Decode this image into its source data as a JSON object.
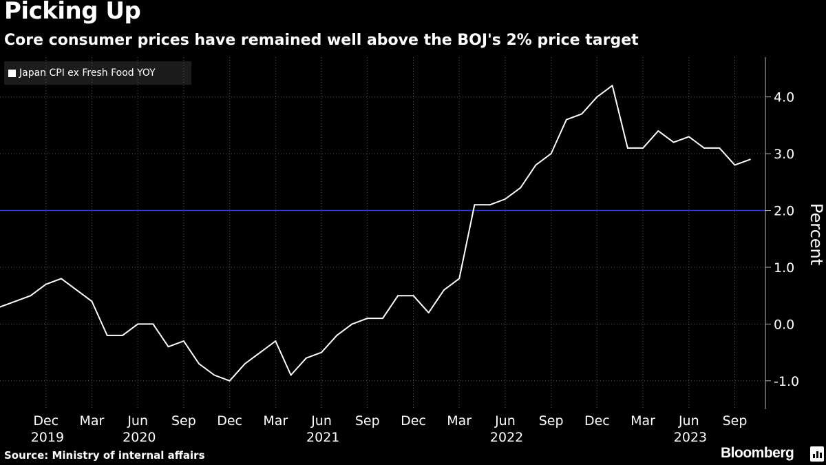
{
  "header": {
    "title": "Picking Up",
    "subtitle": "Core consumer prices have remained well above the BOJ's 2% price target"
  },
  "footer": {
    "source": "Source: Ministry of internal affairs",
    "brand": "Bloomberg",
    "brand_icon": "bloomberg-chart-icon"
  },
  "colors": {
    "background": "#000000",
    "series": "#ffffff",
    "target_line": "#2f3bd6",
    "grid": "#5a5a5a",
    "legend_bg": "#1c1c1c"
  },
  "chart_data": {
    "type": "line",
    "title": "Picking Up",
    "subtitle": "Core consumer prices have remained well above the BOJ's 2% price target",
    "ylabel": "Percent",
    "xlabel": "",
    "ylim": [
      -1.5,
      4.7
    ],
    "yticks": [
      -1.0,
      0.0,
      1.0,
      2.0,
      3.0,
      4.0
    ],
    "ytick_labels": [
      "-1.0",
      "0.0",
      "1.0",
      "2.0",
      "3.0",
      "4.0"
    ],
    "y_axis_side": "right",
    "grid": true,
    "legend_position": "top-left",
    "x_range": [
      "2019-09",
      "2023-10"
    ],
    "xticks": [
      {
        "date": "2019-12",
        "month": "Dec",
        "year": "2019"
      },
      {
        "date": "2020-03",
        "month": "Mar",
        "year": ""
      },
      {
        "date": "2020-06",
        "month": "Jun",
        "year": "2020"
      },
      {
        "date": "2020-09",
        "month": "Sep",
        "year": ""
      },
      {
        "date": "2020-12",
        "month": "Dec",
        "year": ""
      },
      {
        "date": "2021-03",
        "month": "Mar",
        "year": ""
      },
      {
        "date": "2021-06",
        "month": "Jun",
        "year": "2021"
      },
      {
        "date": "2021-09",
        "month": "Sep",
        "year": ""
      },
      {
        "date": "2021-12",
        "month": "Dec",
        "year": ""
      },
      {
        "date": "2022-03",
        "month": "Mar",
        "year": ""
      },
      {
        "date": "2022-06",
        "month": "Jun",
        "year": "2022"
      },
      {
        "date": "2022-09",
        "month": "Sep",
        "year": ""
      },
      {
        "date": "2022-12",
        "month": "Dec",
        "year": ""
      },
      {
        "date": "2023-03",
        "month": "Mar",
        "year": ""
      },
      {
        "date": "2023-06",
        "month": "Jun",
        "year": "2023"
      },
      {
        "date": "2023-09",
        "month": "Sep",
        "year": ""
      }
    ],
    "reference_line": {
      "y": 2.0,
      "color": "#2f3bd6"
    },
    "series": [
      {
        "name": "Japan CPI ex Fresh Food YOY",
        "color": "#ffffff",
        "x": [
          "2019-09",
          "2019-10",
          "2019-11",
          "2019-12",
          "2020-01",
          "2020-02",
          "2020-03",
          "2020-04",
          "2020-05",
          "2020-06",
          "2020-07",
          "2020-08",
          "2020-09",
          "2020-10",
          "2020-11",
          "2020-12",
          "2021-01",
          "2021-02",
          "2021-03",
          "2021-04",
          "2021-05",
          "2021-06",
          "2021-07",
          "2021-08",
          "2021-09",
          "2021-10",
          "2021-11",
          "2021-12",
          "2022-01",
          "2022-02",
          "2022-03",
          "2022-04",
          "2022-05",
          "2022-06",
          "2022-07",
          "2022-08",
          "2022-09",
          "2022-10",
          "2022-11",
          "2022-12",
          "2023-01",
          "2023-02",
          "2023-03",
          "2023-04",
          "2023-05",
          "2023-06",
          "2023-07",
          "2023-08",
          "2023-09",
          "2023-10"
        ],
        "values": [
          0.3,
          0.4,
          0.5,
          0.7,
          0.8,
          0.6,
          0.4,
          -0.2,
          -0.2,
          0.0,
          0.0,
          -0.4,
          -0.3,
          -0.7,
          -0.9,
          -1.0,
          -0.7,
          -0.5,
          -0.3,
          -0.9,
          -0.6,
          -0.5,
          -0.2,
          0.0,
          0.1,
          0.1,
          0.5,
          0.5,
          0.2,
          0.6,
          0.8,
          2.1,
          2.1,
          2.2,
          2.4,
          2.8,
          3.0,
          3.6,
          3.7,
          4.0,
          4.2,
          3.1,
          3.1,
          3.4,
          3.2,
          3.3,
          3.1,
          3.1,
          2.8,
          2.9
        ]
      }
    ]
  }
}
